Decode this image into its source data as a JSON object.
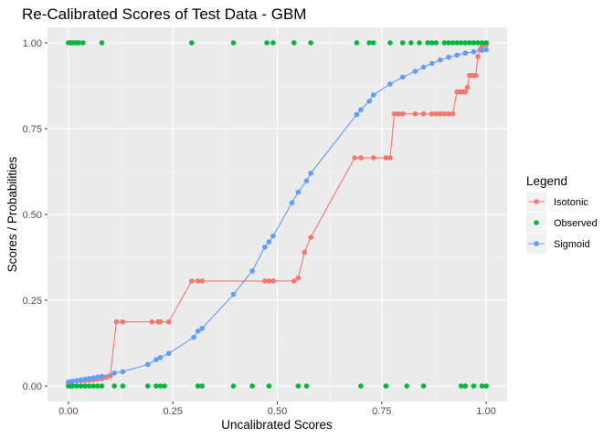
{
  "chart_data": {
    "type": "line",
    "title": "Re-Calibrated Scores of Test Data - GBM",
    "xlabel": "Uncalibrated Scores",
    "ylabel": "Scores / Probabilities",
    "xlim": [
      -0.05,
      1.05
    ],
    "ylim": [
      -0.045,
      1.045
    ],
    "x_ticks": [
      0.0,
      0.25,
      0.5,
      0.75,
      1.0
    ],
    "x_tick_labels": [
      "0.00",
      "0.25",
      "0.50",
      "0.75",
      "1.00"
    ],
    "y_ticks": [
      0.0,
      0.25,
      0.5,
      0.75,
      1.0
    ],
    "y_tick_labels": [
      "0.00",
      "0.25",
      "0.50",
      "0.75",
      "1.00"
    ],
    "grid": true,
    "legend": {
      "title": "Legend",
      "position": "right"
    },
    "series": [
      {
        "name": "Isotonic",
        "color": "#F8766D",
        "line": true,
        "x": [
          0.0,
          0.005,
          0.01,
          0.02,
          0.03,
          0.04,
          0.05,
          0.06,
          0.07,
          0.08,
          0.09,
          0.1,
          0.115,
          0.13,
          0.2,
          0.215,
          0.22,
          0.24,
          0.295,
          0.31,
          0.32,
          0.47,
          0.48,
          0.49,
          0.54,
          0.55,
          0.565,
          0.58,
          0.685,
          0.7,
          0.73,
          0.76,
          0.77,
          0.78,
          0.79,
          0.8,
          0.83,
          0.85,
          0.87,
          0.88,
          0.89,
          0.9,
          0.91,
          0.92,
          0.93,
          0.935,
          0.94,
          0.945,
          0.95,
          0.955,
          0.96,
          0.965,
          0.97,
          0.975,
          0.98,
          0.985,
          0.99,
          1.0
        ],
        "values": [
          0.01,
          0.012,
          0.013,
          0.015,
          0.015,
          0.016,
          0.017,
          0.018,
          0.02,
          0.021,
          0.025,
          0.03,
          0.187,
          0.187,
          0.187,
          0.187,
          0.187,
          0.187,
          0.306,
          0.306,
          0.306,
          0.306,
          0.306,
          0.306,
          0.306,
          0.315,
          0.39,
          0.433,
          0.665,
          0.665,
          0.665,
          0.665,
          0.665,
          0.793,
          0.793,
          0.793,
          0.793,
          0.793,
          0.793,
          0.793,
          0.793,
          0.793,
          0.793,
          0.793,
          0.857,
          0.857,
          0.857,
          0.857,
          0.857,
          0.87,
          0.905,
          0.905,
          0.905,
          0.905,
          0.96,
          0.98,
          0.99,
          0.995
        ]
      },
      {
        "name": "Observed",
        "color": "#00BA38",
        "line": false,
        "x": [
          0.0,
          0.005,
          0.01,
          0.015,
          0.02,
          0.025,
          0.035,
          0.08,
          0.295,
          0.395,
          0.475,
          0.49,
          0.54,
          0.58,
          0.69,
          0.72,
          0.73,
          0.77,
          0.8,
          0.82,
          0.84,
          0.86,
          0.87,
          0.88,
          0.9,
          0.91,
          0.92,
          0.93,
          0.94,
          0.95,
          0.96,
          0.97,
          0.98,
          0.99,
          1.0,
          0.0,
          0.005,
          0.01,
          0.02,
          0.03,
          0.04,
          0.05,
          0.06,
          0.07,
          0.08,
          0.11,
          0.13,
          0.19,
          0.21,
          0.22,
          0.23,
          0.31,
          0.32,
          0.395,
          0.44,
          0.48,
          0.55,
          0.57,
          0.7,
          0.76,
          0.81,
          0.85,
          0.94,
          0.95,
          0.97,
          0.99,
          1.0
        ],
        "values": [
          1,
          1,
          1,
          1,
          1,
          1,
          1,
          1,
          1,
          1,
          1,
          1,
          1,
          1,
          1,
          1,
          1,
          1,
          1,
          1,
          1,
          1,
          1,
          1,
          1,
          1,
          1,
          1,
          1,
          1,
          1,
          1,
          1,
          1,
          1,
          0,
          0,
          0,
          0,
          0,
          0,
          0,
          0,
          0,
          0,
          0,
          0,
          0,
          0,
          0,
          0,
          0,
          0,
          0,
          0,
          0,
          0,
          0,
          0,
          0,
          0,
          0,
          0,
          0,
          0,
          0,
          0
        ]
      },
      {
        "name": "Sigmoid",
        "color": "#619CFF",
        "line": true,
        "x": [
          0.0,
          0.01,
          0.02,
          0.03,
          0.04,
          0.05,
          0.06,
          0.07,
          0.08,
          0.11,
          0.13,
          0.19,
          0.21,
          0.22,
          0.24,
          0.3,
          0.31,
          0.32,
          0.395,
          0.44,
          0.47,
          0.48,
          0.49,
          0.535,
          0.55,
          0.57,
          0.58,
          0.69,
          0.7,
          0.72,
          0.73,
          0.77,
          0.8,
          0.83,
          0.85,
          0.87,
          0.89,
          0.91,
          0.93,
          0.95,
          0.97,
          0.99,
          1.0
        ],
        "values": [
          0.012,
          0.014,
          0.016,
          0.018,
          0.02,
          0.022,
          0.024,
          0.026,
          0.028,
          0.038,
          0.042,
          0.063,
          0.077,
          0.083,
          0.095,
          0.142,
          0.16,
          0.168,
          0.267,
          0.335,
          0.405,
          0.42,
          0.437,
          0.534,
          0.565,
          0.598,
          0.62,
          0.791,
          0.805,
          0.83,
          0.848,
          0.88,
          0.9,
          0.917,
          0.929,
          0.94,
          0.95,
          0.958,
          0.964,
          0.97,
          0.974,
          0.978,
          0.98
        ]
      }
    ]
  }
}
